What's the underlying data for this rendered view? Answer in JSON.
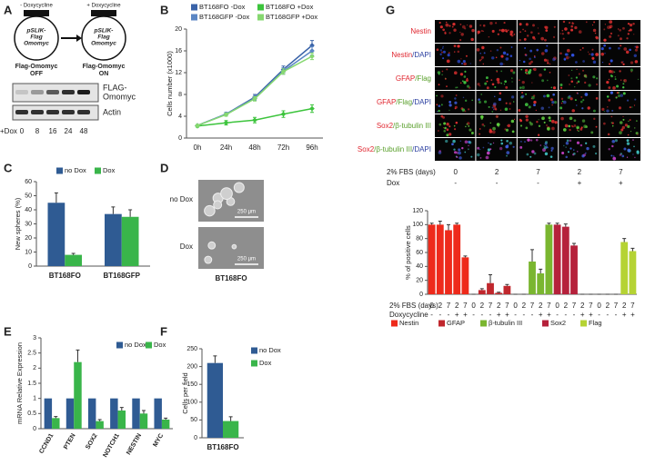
{
  "panel_labels": [
    "A",
    "B",
    "C",
    "D",
    "E",
    "F",
    "G"
  ],
  "panel_a": {
    "before": {
      "treatment": "- Doxycycline",
      "vector": [
        "pSLIK-",
        "Flag",
        "Omomyc"
      ],
      "state": [
        "Flag-Omomyc",
        "OFF"
      ]
    },
    "after": {
      "treatment": "+ Doxycycline",
      "vector": [
        "pSLIK-",
        "Flag",
        "Omomyc"
      ],
      "state": [
        "Flag-Omomyc",
        "ON"
      ]
    },
    "blot_labels": [
      [
        "FLAG-",
        "Omomyc"
      ],
      [
        "Actin"
      ]
    ],
    "lane_title": "+Dox",
    "lanes": [
      "0",
      "8",
      "16",
      "24",
      "48"
    ]
  },
  "panel_d": {
    "conditions": [
      "no Dox",
      "Dox"
    ],
    "scale_bar": "250 μm",
    "caption": "BT168FO"
  },
  "panel_g_images": {
    "rows": [
      [
        {
          "text": "Nestin",
          "color": "#e0262f"
        }
      ],
      [
        {
          "text": "Nestin",
          "color": "#e0262f"
        },
        {
          "text": "/DAPI",
          "color": "#2b3fa0"
        }
      ],
      [
        {
          "text": "GFAP",
          "color": "#e0262f"
        },
        {
          "text": "/Flag",
          "color": "#5aa02c"
        }
      ],
      [
        {
          "text": "GFAP",
          "color": "#e0262f"
        },
        {
          "text": "/Flag",
          "color": "#5aa02c"
        },
        {
          "text": "/DAPI",
          "color": "#2b3fa0"
        }
      ],
      [
        {
          "text": "Sox2",
          "color": "#e0262f"
        },
        {
          "text": "/β-tubulin III",
          "color": "#5aa02c"
        }
      ],
      [
        {
          "text": "Sox2",
          "color": "#e0262f"
        },
        {
          "text": "/β-tubulin III",
          "color": "#5aa02c"
        },
        {
          "text": "/DAPI",
          "color": "#2b3fa0"
        }
      ]
    ],
    "fbs_label": "2% FBS  (days)",
    "fbs_days": [
      "0",
      "2",
      "7",
      "2",
      "7"
    ],
    "dox_label": "Dox",
    "dox": [
      "-",
      "-",
      "-",
      "+",
      "+"
    ]
  },
  "chart_data": [
    {
      "type": "line",
      "y_label": "Cells number (x1000)",
      "categories": [
        "0h",
        "24h",
        "48h",
        "72h",
        "96h"
      ],
      "ylim": [
        0,
        20
      ],
      "yticks": [
        0,
        4,
        8,
        12,
        16,
        20
      ],
      "series": [
        {
          "name": "BT168FO -Dox",
          "color": "#3a63a8",
          "values": [
            2.3,
            4.4,
            7.5,
            12.6,
            17
          ],
          "errors": [
            0.2,
            0.3,
            0.5,
            0.6,
            0.9
          ]
        },
        {
          "name": "BT168GFP -Dox",
          "color": "#5b86c4",
          "values": [
            2.3,
            4.4,
            7.3,
            12.3,
            16
          ],
          "errors": [
            0.2,
            0.3,
            0.4,
            0.6,
            0.8
          ]
        },
        {
          "name": "BT168FO +Dox",
          "color": "#3cc43c",
          "values": [
            2.2,
            2.8,
            3.3,
            4.4,
            5.4
          ],
          "errors": [
            0.2,
            0.4,
            0.5,
            0.6,
            0.7
          ]
        },
        {
          "name": "BT168GFP +Dox",
          "color": "#86d870",
          "values": [
            2.3,
            4.3,
            7.2,
            12.2,
            15
          ],
          "errors": [
            0.2,
            0.3,
            0.4,
            0.5,
            0.6
          ]
        }
      ]
    },
    {
      "type": "bar",
      "y_label": "New spheres (%)",
      "categories": [
        "BT168FO",
        "BT168GFP"
      ],
      "ylim": [
        0,
        60
      ],
      "yticks": [
        0,
        10,
        20,
        30,
        40,
        50,
        60
      ],
      "series": [
        {
          "name": "no Dox",
          "color": "#2f5b93",
          "values": [
            45,
            37
          ],
          "errors": [
            7,
            5
          ]
        },
        {
          "name": "Dox",
          "color": "#39b54a",
          "values": [
            8,
            35
          ],
          "errors": [
            1,
            5
          ]
        }
      ]
    },
    {
      "type": "bar",
      "y_label": "mRNA  Relative Expression",
      "categories": [
        "CCND1",
        "PTEN",
        "SOX2",
        "NOTCH1",
        "NESTIN",
        "MYC"
      ],
      "ylim": [
        0,
        3
      ],
      "yticks": [
        0,
        0.5,
        1,
        1.5,
        2,
        2.5,
        3
      ],
      "series": [
        {
          "name": "no Dox",
          "color": "#2f5b93",
          "values": [
            1,
            1,
            1,
            1,
            1,
            1
          ]
        },
        {
          "name": "Dox",
          "color": "#39b54a",
          "values": [
            0.35,
            2.2,
            0.25,
            0.6,
            0.5,
            0.3
          ],
          "errors": [
            0.05,
            0.4,
            0.05,
            0.1,
            0.1,
            0.05
          ]
        }
      ]
    },
    {
      "type": "bar",
      "y_label": "Cells per field",
      "categories": [
        "BT168FO"
      ],
      "ylim": [
        0,
        250
      ],
      "yticks": [
        0,
        50,
        100,
        150,
        200,
        250
      ],
      "series": [
        {
          "name": "no Dox",
          "color": "#2f5b93",
          "values": [
            210
          ],
          "errors": [
            20
          ]
        },
        {
          "name": "Dox",
          "color": "#39b54a",
          "values": [
            47
          ],
          "errors": [
            12
          ]
        }
      ]
    },
    {
      "type": "bar",
      "y_label": "% of positive cells",
      "categories": [
        "0",
        "2",
        "7",
        "2",
        "7"
      ],
      "category_label": "2% FBS  (days)",
      "doxycycline": [
        "-",
        "-",
        "-",
        "+",
        "+"
      ],
      "doxycycline_label": "Doxycycline",
      "ylim": [
        0,
        120
      ],
      "yticks": [
        0,
        20,
        40,
        60,
        80,
        100,
        120
      ],
      "series": [
        {
          "name": "Nestin",
          "color": "#ee2a1b",
          "values": [
            100,
            100,
            92,
            100,
            53
          ],
          "errors": [
            2,
            5,
            8,
            2,
            2
          ]
        },
        {
          "name": "GFAP",
          "color": "#c0272d",
          "values": [
            0,
            6,
            16,
            2,
            12
          ],
          "errors": [
            0,
            2,
            12,
            1,
            2
          ]
        },
        {
          "name": "β-tubulin III",
          "color": "#7ab630",
          "values": [
            0,
            0,
            47,
            30,
            100
          ],
          "errors": [
            0,
            0,
            17,
            6,
            2
          ]
        },
        {
          "name": "Sox2",
          "color": "#b5213b",
          "values": [
            100,
            97,
            70,
            0,
            0
          ],
          "errors": [
            2,
            4,
            3,
            0,
            0
          ]
        },
        {
          "name": "Flag",
          "color": "#b5d334",
          "values": [
            0,
            0,
            0,
            75,
            62
          ],
          "errors": [
            0,
            0,
            0,
            5,
            4
          ]
        }
      ]
    }
  ]
}
